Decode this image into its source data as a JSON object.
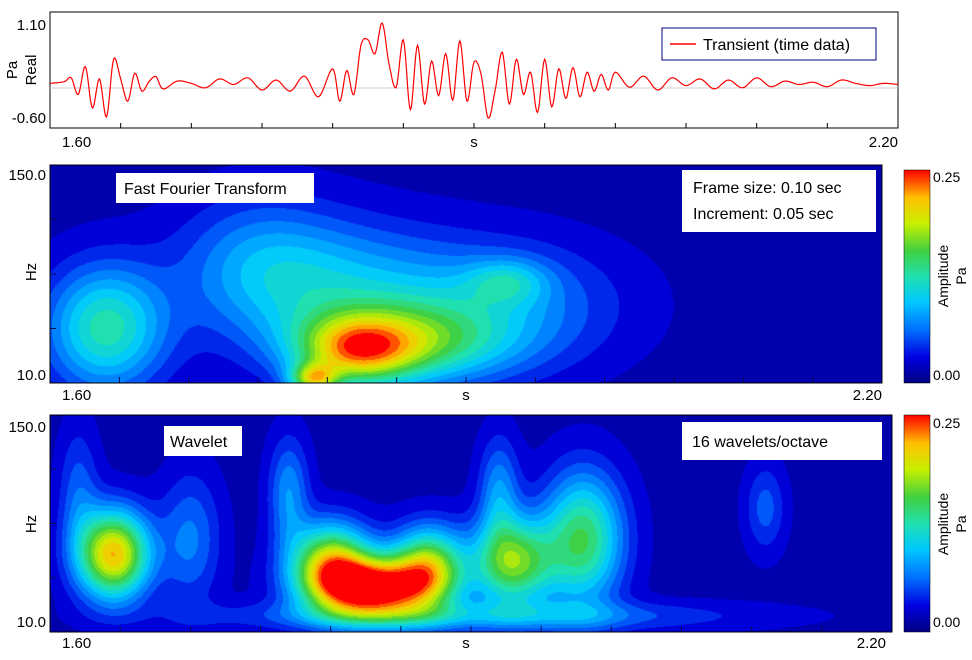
{
  "chart_data": [
    {
      "type": "line",
      "ylabel": "Real",
      "yunit": "Pa",
      "xlabel": "s",
      "xlim": [
        1.6,
        2.2
      ],
      "ylim": [
        -0.6,
        1.1
      ],
      "x_tick_labels": [
        "1.60",
        "2.20"
      ],
      "y_tick_labels": [
        "1.10",
        "-0.60"
      ],
      "legend": {
        "position": "top-right",
        "entries": [
          "Transient (time data)"
        ]
      },
      "series": [
        {
          "name": "Transient (time data)",
          "color": "#ff0000",
          "x": [
            1.6,
            1.61,
            1.615,
            1.62,
            1.625,
            1.63,
            1.635,
            1.64,
            1.645,
            1.65,
            1.655,
            1.66,
            1.665,
            1.67,
            1.675,
            1.68,
            1.69,
            1.7,
            1.71,
            1.72,
            1.73,
            1.74,
            1.75,
            1.76,
            1.77,
            1.78,
            1.79,
            1.8,
            1.805,
            1.81,
            1.815,
            1.82,
            1.825,
            1.83,
            1.835,
            1.84,
            1.845,
            1.85,
            1.855,
            1.86,
            1.865,
            1.87,
            1.875,
            1.88,
            1.885,
            1.89,
            1.895,
            1.9,
            1.905,
            1.91,
            1.915,
            1.92,
            1.925,
            1.93,
            1.935,
            1.94,
            1.945,
            1.95,
            1.955,
            1.96,
            1.965,
            1.97,
            1.975,
            1.98,
            1.985,
            1.99,
            1.995,
            2.0,
            2.01,
            2.02,
            2.03,
            2.04,
            2.05,
            2.06,
            2.07,
            2.08,
            2.09,
            2.1,
            2.11,
            2.12,
            2.13,
            2.14,
            2.15,
            2.16,
            2.17,
            2.18,
            2.19,
            2.2
          ],
          "y": [
            0.02,
            0.05,
            0.12,
            -0.18,
            0.32,
            -0.42,
            0.1,
            -0.58,
            0.45,
            0.1,
            -0.3,
            0.2,
            -0.12,
            0.05,
            0.14,
            -0.08,
            0.06,
            0.02,
            -0.06,
            0.1,
            0.0,
            0.12,
            -0.1,
            0.08,
            -0.12,
            0.15,
            -0.22,
            0.28,
            -0.3,
            0.25,
            -0.18,
            0.7,
            0.8,
            0.55,
            1.1,
            0.35,
            -0.05,
            0.8,
            -0.45,
            0.7,
            -0.35,
            0.42,
            -0.2,
            0.55,
            -0.28,
            0.78,
            -0.3,
            0.4,
            0.18,
            -0.6,
            -0.1,
            0.58,
            -0.35,
            0.45,
            -0.18,
            0.22,
            -0.5,
            0.45,
            -0.4,
            0.28,
            -0.25,
            0.3,
            -0.22,
            0.22,
            -0.12,
            0.18,
            -0.1,
            0.22,
            -0.05,
            0.15,
            -0.1,
            0.12,
            -0.02,
            0.1,
            -0.08,
            0.08,
            -0.06,
            0.12,
            -0.04,
            0.06,
            0.0,
            0.04,
            -0.04,
            0.08,
            0.02,
            -0.02,
            0.02,
            0.0
          ]
        }
      ]
    },
    {
      "type": "heatmap",
      "title": "Fast Fourier Transform",
      "annotation": [
        "Frame size: 0.10 sec",
        "Increment: 0.05 sec"
      ],
      "xlabel": "s",
      "ylabel": "Hz",
      "xlim": [
        1.6,
        2.2
      ],
      "ylim": [
        10.0,
        150.0
      ],
      "x_tick_labels": [
        "1.60",
        "2.20"
      ],
      "y_tick_labels": [
        "150.0",
        "10.0"
      ],
      "colorbar": {
        "label": "Amplitude",
        "unit": "Pa",
        "min_label": "0.00",
        "max_label": "0.25",
        "range": [
          0,
          0.25
        ]
      },
      "blobs": [
        {
          "x": 1.64,
          "y": 45,
          "sx": 0.03,
          "sy": 28,
          "amp": 0.11
        },
        {
          "x": 1.8,
          "y": 70,
          "sx": 0.06,
          "sy": 30,
          "amp": 0.07
        },
        {
          "x": 1.82,
          "y": 30,
          "sx": 0.03,
          "sy": 16,
          "amp": 0.13
        },
        {
          "x": 1.86,
          "y": 35,
          "sx": 0.05,
          "sy": 18,
          "amp": 0.1
        },
        {
          "x": 1.79,
          "y": 12,
          "sx": 0.012,
          "sy": 7,
          "amp": 0.13
        },
        {
          "x": 1.92,
          "y": 60,
          "sx": 0.06,
          "sy": 28,
          "amp": 0.06
        },
        {
          "x": 1.93,
          "y": 75,
          "sx": 0.02,
          "sy": 10,
          "amp": 0.05
        },
        {
          "x": 1.75,
          "y": 90,
          "sx": 0.04,
          "sy": 30,
          "amp": 0.04
        }
      ]
    },
    {
      "type": "heatmap",
      "title": "Wavelet",
      "annotation": [
        "16 wavelets/octave"
      ],
      "xlabel": "s",
      "ylabel": "Hz",
      "xlim": [
        1.6,
        2.2
      ],
      "ylim": [
        10.0,
        150.0
      ],
      "x_tick_labels": [
        "1.60",
        "2.20"
      ],
      "y_tick_labels": [
        "150.0",
        "10.0"
      ],
      "colorbar": {
        "label": "Amplitude",
        "unit": "Pa",
        "min_label": "0.00",
        "max_label": "0.25",
        "range": [
          0,
          0.25
        ]
      },
      "blobs": [
        {
          "x": 1.645,
          "y": 60,
          "sx": 0.018,
          "sy": 20,
          "amp": 0.2
        },
        {
          "x": 1.83,
          "y": 38,
          "sx": 0.03,
          "sy": 14,
          "amp": 0.24
        },
        {
          "x": 1.8,
          "y": 55,
          "sx": 0.02,
          "sy": 18,
          "amp": 0.16
        },
        {
          "x": 1.87,
          "y": 52,
          "sx": 0.018,
          "sy": 18,
          "amp": 0.15
        },
        {
          "x": 1.93,
          "y": 55,
          "sx": 0.02,
          "sy": 20,
          "amp": 0.15
        },
        {
          "x": 1.98,
          "y": 70,
          "sx": 0.02,
          "sy": 30,
          "amp": 0.13
        },
        {
          "x": 1.92,
          "y": 100,
          "sx": 0.01,
          "sy": 25,
          "amp": 0.06
        },
        {
          "x": 1.77,
          "y": 100,
          "sx": 0.01,
          "sy": 25,
          "amp": 0.06
        },
        {
          "x": 1.7,
          "y": 70,
          "sx": 0.015,
          "sy": 30,
          "amp": 0.05
        },
        {
          "x": 1.9,
          "y": 20,
          "sx": 0.12,
          "sy": 7,
          "amp": 0.06
        },
        {
          "x": 1.62,
          "y": 100,
          "sx": 0.01,
          "sy": 30,
          "amp": 0.04
        },
        {
          "x": 2.11,
          "y": 90,
          "sx": 0.01,
          "sy": 20,
          "amp": 0.04
        }
      ]
    }
  ]
}
